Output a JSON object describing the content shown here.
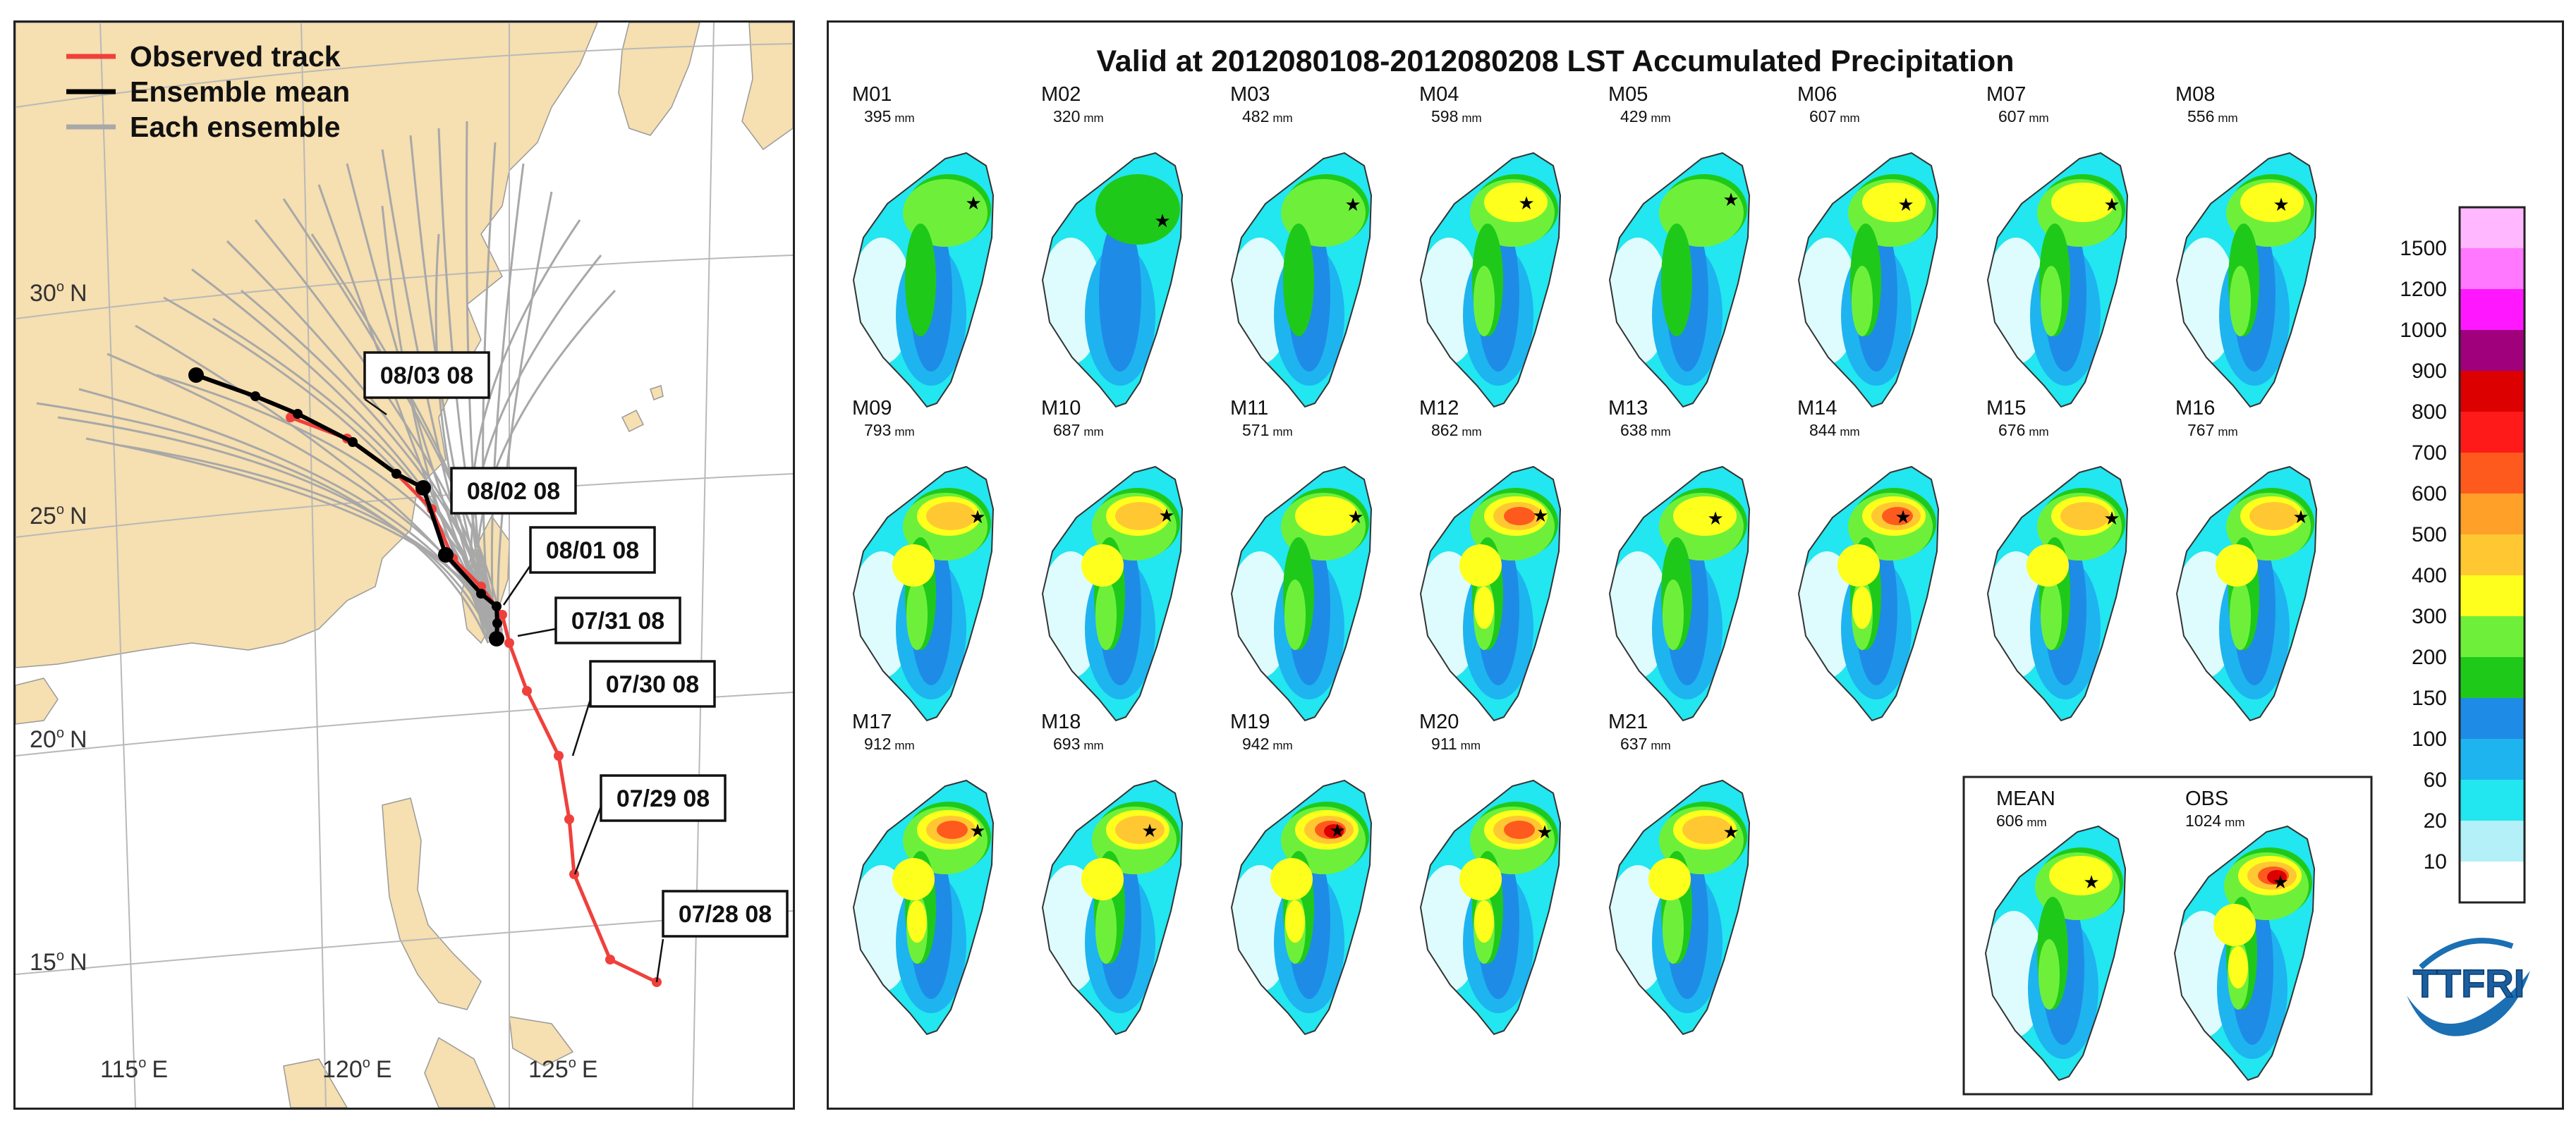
{
  "track_map": {
    "legend": [
      {
        "label": "Observed track",
        "color": "#f0403c"
      },
      {
        "label": "Ensemble mean",
        "color": "#000000"
      },
      {
        "label": "Each ensemble",
        "color": "#a8a8a8"
      }
    ],
    "lat_labels": [
      {
        "text": "30",
        "unit": "N"
      },
      {
        "text": "25",
        "unit": "N"
      },
      {
        "text": "20",
        "unit": "N"
      },
      {
        "text": "15",
        "unit": "N"
      }
    ],
    "lon_labels": [
      {
        "text": "115",
        "unit": "E"
      },
      {
        "text": "120",
        "unit": "E"
      },
      {
        "text": "125",
        "unit": "E"
      }
    ],
    "date_labels": [
      "08/03 08",
      "08/02 08",
      "08/01 08",
      "07/31 08",
      "07/30 08",
      "07/29 08",
      "07/28 08"
    ],
    "colors": {
      "land": "#f6dfb0",
      "sea": "#ffffff",
      "grid": "#b9b9b9",
      "observed": "#f0403c",
      "mean": "#000000",
      "ensemble": "#a8a8a8"
    }
  },
  "precip": {
    "title": "Valid at 2012080108-2012080208 LST Accumulated Precipitation",
    "members": [
      {
        "name": "M01",
        "value": "395",
        "unit": "mm"
      },
      {
        "name": "M02",
        "value": "320",
        "unit": "mm"
      },
      {
        "name": "M03",
        "value": "482",
        "unit": "mm"
      },
      {
        "name": "M04",
        "value": "598",
        "unit": "mm"
      },
      {
        "name": "M05",
        "value": "429",
        "unit": "mm"
      },
      {
        "name": "M06",
        "value": "607",
        "unit": "mm"
      },
      {
        "name": "M07",
        "value": "607",
        "unit": "mm"
      },
      {
        "name": "M08",
        "value": "556",
        "unit": "mm"
      },
      {
        "name": "M09",
        "value": "793",
        "unit": "mm"
      },
      {
        "name": "M10",
        "value": "687",
        "unit": "mm"
      },
      {
        "name": "M11",
        "value": "571",
        "unit": "mm"
      },
      {
        "name": "M12",
        "value": "862",
        "unit": "mm"
      },
      {
        "name": "M13",
        "value": "638",
        "unit": "mm"
      },
      {
        "name": "M14",
        "value": "844",
        "unit": "mm"
      },
      {
        "name": "M15",
        "value": "676",
        "unit": "mm"
      },
      {
        "name": "M16",
        "value": "767",
        "unit": "mm"
      },
      {
        "name": "M17",
        "value": "912",
        "unit": "mm"
      },
      {
        "name": "M18",
        "value": "693",
        "unit": "mm"
      },
      {
        "name": "M19",
        "value": "942",
        "unit": "mm"
      },
      {
        "name": "M20",
        "value": "911",
        "unit": "mm"
      },
      {
        "name": "M21",
        "value": "637",
        "unit": "mm"
      }
    ],
    "mean": {
      "name": "MEAN",
      "value": "606",
      "unit": "mm"
    },
    "obs": {
      "name": "OBS",
      "value": "1024",
      "unit": "mm"
    },
    "colorbar": {
      "labels": [
        "1500",
        "1200",
        "1000",
        "900",
        "800",
        "700",
        "600",
        "500",
        "400",
        "300",
        "200",
        "150",
        "100",
        "60",
        "20",
        "10"
      ],
      "colors": [
        "#ffb8ff",
        "#ff78ff",
        "#ff18ff",
        "#a0007c",
        "#dc0000",
        "#ff1a1a",
        "#ff5a1e",
        "#ffa028",
        "#ffc832",
        "#ffff1e",
        "#6ef03a",
        "#1fc91a",
        "#1e8ce6",
        "#1eb4f0",
        "#22e6f0",
        "#b4f0f8",
        "#ffffff"
      ]
    },
    "logo": "TTFRI"
  }
}
